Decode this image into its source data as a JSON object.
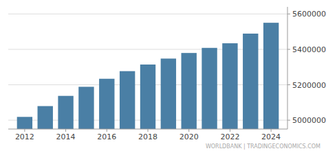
{
  "chart_data": {
    "type": "bar",
    "x": [
      2012,
      2013,
      2014,
      2015,
      2016,
      2017,
      2018,
      2019,
      2020,
      2021,
      2022,
      2023,
      2024
    ],
    "values": [
      5018573,
      5079623,
      5137232,
      5188607,
      5233977,
      5276967,
      5314336,
      5347896,
      5379592,
      5408320,
      5434319,
      5488984,
      5550203
    ],
    "color": "#4a7fa5",
    "xlim": [
      2011.2,
      2024.8
    ],
    "ylim": [
      4950000,
      5640000
    ],
    "xticks": [
      2012,
      2014,
      2016,
      2018,
      2020,
      2022,
      2024
    ],
    "yticks": [
      5000000,
      5200000,
      5400000,
      5600000
    ],
    "grid": true,
    "annotation": "WORLDBANK | TRADINGECONOMICS.COM"
  }
}
